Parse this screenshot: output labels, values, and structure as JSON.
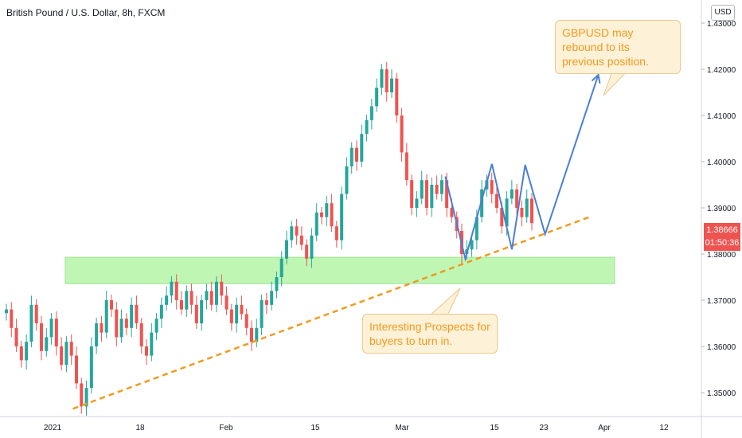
{
  "header": {
    "title": "British Pound / U.S. Dollar, 8h, FXCM",
    "currency_button": "USD"
  },
  "price_tag": {
    "price": "1.38666",
    "countdown": "01:50:36"
  },
  "annotations": {
    "rebound": "GBPUSD may rebound to its previous position.",
    "prospects": "Interesting Prospects for buyers to turn in."
  },
  "colors": {
    "up": "#26a69a",
    "down": "#ef5350",
    "support_zone": "#b9f6ac",
    "trendline": "#f29a1d",
    "projection": "#4a7fd6",
    "callout_text": "#f29a1d"
  },
  "chart_data": {
    "type": "candlestick",
    "ylim": [
      1.345,
      1.435
    ],
    "y_ticks": [
      "1.35000",
      "1.36000",
      "1.37000",
      "1.38000",
      "1.39000",
      "1.40000",
      "1.41000",
      "1.42000",
      "1.43000"
    ],
    "x_ticks": [
      "2021",
      "18",
      "Feb",
      "15",
      "Mar",
      "15",
      "23",
      "Apr",
      "12"
    ],
    "support_zone": [
      1.3736,
      1.3793
    ],
    "trendline": [
      {
        "x": "2021-01-11",
        "y": 1.3465
      },
      {
        "x": "2021-03-30",
        "y": 1.3882
      }
    ],
    "projection": [
      {
        "x": "2021-03-08",
        "y": 1.3968
      },
      {
        "x": "2021-03-11",
        "y": 1.379
      },
      {
        "x": "2021-03-15",
        "y": 1.3995
      },
      {
        "x": "2021-03-18",
        "y": 1.381
      },
      {
        "x": "2021-03-20",
        "y": 1.3993
      },
      {
        "x": "2021-03-23",
        "y": 1.3843
      },
      {
        "x": "2021-03-31",
        "y": 1.4188
      }
    ],
    "series": [
      {
        "values": [
          1.368,
          1.364,
          1.36,
          1.357,
          1.361,
          1.369,
          1.365,
          1.359,
          1.362,
          1.366,
          1.36,
          1.356,
          1.361,
          1.358,
          1.352,
          1.347,
          1.351,
          1.36,
          1.365,
          1.363,
          1.37,
          1.368,
          1.362,
          1.366,
          1.364,
          1.369,
          1.365,
          1.36,
          1.358,
          1.363,
          1.366,
          1.369,
          1.371,
          1.374,
          1.37,
          1.368,
          1.372,
          1.369,
          1.365,
          1.37,
          1.372,
          1.369,
          1.374,
          1.371,
          1.368,
          1.365,
          1.369,
          1.367,
          1.364,
          1.361,
          1.364,
          1.37,
          1.369,
          1.372,
          1.375,
          1.379,
          1.383,
          1.386,
          1.384,
          1.382,
          1.379,
          1.384,
          1.389,
          1.388,
          1.391,
          1.386,
          1.383,
          1.393,
          1.399,
          1.403,
          1.4,
          1.406,
          1.409,
          1.412,
          1.416,
          1.42,
          1.415,
          1.418,
          1.41,
          1.402,
          1.396,
          1.39,
          1.392,
          1.396,
          1.39,
          1.395,
          1.393,
          1.396,
          1.39,
          1.388,
          1.385,
          1.38,
          1.381,
          1.383,
          1.388,
          1.394,
          1.396,
          1.393,
          1.39,
          1.386,
          1.392,
          1.394,
          1.39,
          1.388,
          1.392,
          1.3867
        ]
      }
    ]
  }
}
